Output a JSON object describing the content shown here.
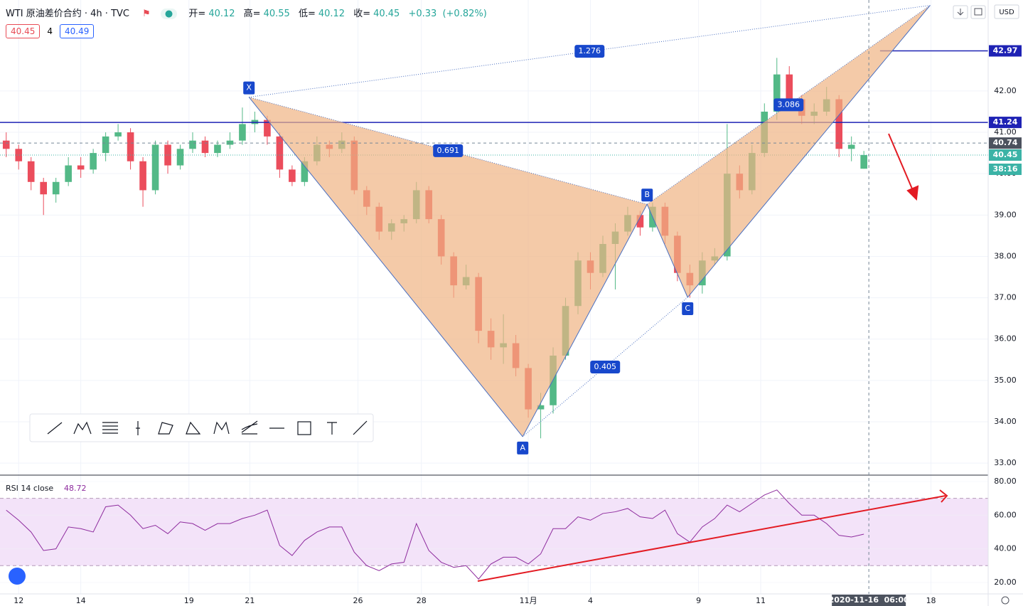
{
  "header": {
    "symbol": "WTI 原油差价合约 · 4h · TVC",
    "ohlc": [
      {
        "label": "开=",
        "value": 40.12
      },
      {
        "label": "高=",
        "value": 40.55
      },
      {
        "label": "低=",
        "value": 40.12
      },
      {
        "label": "收=",
        "value": 40.45
      }
    ],
    "change": {
      "value": 0.33,
      "label": "+0.33"
    },
    "change_pct": {
      "value": 0.82,
      "label": "(+0.82%)"
    },
    "bid": 40.45,
    "spread": 4,
    "ask": 40.49,
    "currency": "USD"
  },
  "chart_data": [
    {
      "type": "candlestick",
      "up_color": "#53b987",
      "down_color": "#eb4d5c",
      "grid": true,
      "xlim": [
        -0.5,
        79
      ],
      "ylim": [
        32.71,
        44.2
      ],
      "xticks": [
        {
          "value": 1,
          "label": "12"
        },
        {
          "value": 6,
          "label": "14"
        },
        {
          "value": 14.7,
          "label": "19"
        },
        {
          "value": 19.6,
          "label": "21"
        },
        {
          "value": 28.3,
          "label": "26"
        },
        {
          "value": 33.4,
          "label": "28"
        },
        {
          "value": 42,
          "label": "11月"
        },
        {
          "value": 47,
          "label": "4"
        },
        {
          "value": 55.7,
          "label": "9"
        },
        {
          "value": 60.7,
          "label": "11"
        },
        {
          "value": 74.4,
          "label": "18"
        }
      ],
      "yticks": [
        {
          "value": 33,
          "label": "33.00"
        },
        {
          "value": 34,
          "label": "34.00"
        },
        {
          "value": 35,
          "label": "35.00"
        },
        {
          "value": 36,
          "label": "36.00"
        },
        {
          "value": 37,
          "label": "37.00"
        },
        {
          "value": 38,
          "label": "38.00"
        },
        {
          "value": 39,
          "label": "39.00"
        },
        {
          "value": 40,
          "label": "40.00"
        },
        {
          "value": 41,
          "label": "41.00"
        },
        {
          "value": 42,
          "label": "42.00"
        }
      ],
      "ohlc": [
        [
          40.8,
          41.0,
          40.4,
          40.6
        ],
        [
          40.6,
          40.7,
          40.1,
          40.3
        ],
        [
          40.3,
          40.4,
          39.6,
          39.8
        ],
        [
          39.8,
          39.9,
          39.0,
          39.5
        ],
        [
          39.5,
          39.9,
          39.3,
          39.8
        ],
        [
          39.8,
          40.4,
          39.7,
          40.2
        ],
        [
          40.2,
          40.4,
          39.9,
          40.1
        ],
        [
          40.1,
          40.6,
          40.0,
          40.5
        ],
        [
          40.5,
          41.0,
          40.3,
          40.9
        ],
        [
          40.9,
          41.2,
          40.8,
          41.0
        ],
        [
          41.0,
          41.1,
          40.1,
          40.3
        ],
        [
          40.3,
          40.4,
          39.2,
          39.6
        ],
        [
          39.6,
          40.8,
          39.5,
          40.7
        ],
        [
          40.7,
          40.8,
          40.0,
          40.2
        ],
        [
          40.2,
          40.7,
          40.1,
          40.6
        ],
        [
          40.6,
          41.0,
          40.5,
          40.8
        ],
        [
          40.8,
          40.9,
          40.4,
          40.5
        ],
        [
          40.5,
          40.8,
          40.4,
          40.7
        ],
        [
          40.7,
          41.0,
          40.6,
          40.8
        ],
        [
          40.8,
          41.6,
          40.7,
          41.2
        ],
        [
          41.2,
          41.5,
          41.0,
          41.3
        ],
        [
          41.3,
          41.4,
          40.7,
          40.9
        ],
        [
          40.9,
          41.0,
          39.9,
          40.1
        ],
        [
          40.1,
          40.2,
          39.7,
          39.8
        ],
        [
          39.8,
          40.4,
          39.7,
          40.3
        ],
        [
          40.3,
          40.9,
          40.2,
          40.7
        ],
        [
          40.7,
          40.8,
          40.4,
          40.6
        ],
        [
          40.6,
          41.0,
          40.5,
          40.8
        ],
        [
          40.8,
          40.9,
          39.5,
          39.6
        ],
        [
          39.6,
          39.7,
          39.0,
          39.2
        ],
        [
          39.2,
          39.3,
          38.4,
          38.6
        ],
        [
          38.6,
          38.9,
          38.4,
          38.8
        ],
        [
          38.8,
          39.0,
          38.6,
          38.9
        ],
        [
          38.9,
          39.8,
          38.8,
          39.6
        ],
        [
          39.6,
          39.7,
          38.8,
          38.9
        ],
        [
          38.9,
          39.0,
          37.8,
          38.0
        ],
        [
          38.0,
          38.1,
          37.0,
          37.3
        ],
        [
          37.3,
          37.8,
          37.2,
          37.5
        ],
        [
          37.5,
          37.6,
          35.9,
          36.2
        ],
        [
          36.2,
          36.5,
          35.5,
          35.8
        ],
        [
          35.8,
          36.6,
          35.4,
          35.9
        ],
        [
          35.9,
          36.1,
          35.1,
          35.3
        ],
        [
          35.3,
          35.4,
          34.1,
          34.3
        ],
        [
          34.3,
          34.7,
          33.6,
          34.4
        ],
        [
          34.4,
          35.8,
          34.2,
          35.6
        ],
        [
          35.6,
          37.0,
          35.5,
          36.8
        ],
        [
          36.8,
          38.1,
          36.6,
          37.9
        ],
        [
          37.9,
          38.1,
          37.2,
          37.6
        ],
        [
          37.6,
          38.5,
          37.5,
          38.3
        ],
        [
          38.3,
          38.8,
          37.2,
          38.6
        ],
        [
          38.6,
          39.2,
          38.5,
          39.0
        ],
        [
          39.0,
          39.1,
          38.5,
          38.7
        ],
        [
          38.7,
          39.3,
          38.6,
          39.2
        ],
        [
          39.2,
          39.3,
          38.3,
          38.5
        ],
        [
          38.5,
          38.6,
          37.4,
          37.6
        ],
        [
          37.6,
          37.8,
          37.0,
          37.3
        ],
        [
          37.3,
          38.1,
          37.1,
          37.9
        ],
        [
          37.9,
          38.2,
          37.8,
          38.0
        ],
        [
          38.0,
          41.2,
          37.9,
          40.0
        ],
        [
          40.0,
          40.2,
          39.4,
          39.6
        ],
        [
          39.6,
          40.7,
          39.5,
          40.5
        ],
        [
          40.5,
          41.7,
          40.4,
          41.5
        ],
        [
          41.5,
          42.8,
          41.3,
          42.4
        ],
        [
          42.4,
          42.6,
          41.6,
          41.8
        ],
        [
          41.8,
          41.9,
          41.2,
          41.4
        ],
        [
          41.4,
          41.7,
          41.2,
          41.5
        ],
        [
          41.5,
          42.1,
          41.4,
          41.8
        ],
        [
          41.8,
          41.9,
          40.4,
          40.6
        ],
        [
          40.6,
          40.9,
          40.3,
          40.7
        ],
        [
          40.12,
          40.55,
          40.12,
          40.45
        ]
      ],
      "pattern": {
        "points": [
          {
            "name": "X",
            "x": 19.53,
            "y": 41.85
          },
          {
            "name": "A",
            "x": 41.55,
            "y": 33.64
          },
          {
            "name": "B",
            "x": 51.56,
            "y": 39.26
          },
          {
            "name": "C",
            "x": 54.82,
            "y": 37.01
          },
          {
            "name": null,
            "x": 74.33,
            "y": 44.07
          }
        ],
        "ratios": [
          1.276,
          0.691,
          0.405,
          3.086
        ],
        "fill": "#f0b483",
        "line_color": "#4a6fc0",
        "label_color": "#1848cc"
      },
      "levels": [
        {
          "value": 42.97,
          "start": 70.3,
          "color": "#1e22b4"
        },
        {
          "value": 41.24,
          "color": "#1e22b4"
        }
      ],
      "last_price": {
        "value": 40.45,
        "color": "#3bb3a6"
      },
      "countdown": "38:16",
      "crosshair": {
        "x": {
          "value": 69.4,
          "label": "2020-11-16  06:00"
        },
        "y": 40.74
      }
    },
    {
      "type": "line",
      "title": "RSI 14 close",
      "last_value": 48.72,
      "color": "#8e2c9e",
      "band": [
        30,
        70
      ],
      "ylim": [
        13.2,
        83.8
      ],
      "yticks": [
        {
          "value": 20,
          "label": "20.00"
        },
        {
          "value": 40,
          "label": "40.00"
        },
        {
          "value": 60,
          "label": "60.00"
        },
        {
          "value": 80,
          "label": "80.00"
        }
      ],
      "values": [
        63,
        57,
        50,
        39,
        40,
        53,
        52,
        50,
        65,
        66,
        60,
        52,
        54,
        49,
        56,
        55,
        51,
        55,
        55,
        58,
        60,
        63,
        42,
        36,
        45,
        50,
        53,
        53,
        38,
        30,
        27,
        31,
        32,
        55,
        39,
        32,
        29,
        30,
        22,
        31,
        35,
        35,
        31,
        37,
        52,
        52,
        59,
        57,
        61,
        62,
        64,
        59,
        58,
        63,
        49,
        44,
        53,
        58,
        66,
        62,
        67,
        72,
        75,
        67,
        60,
        60,
        55,
        48,
        47,
        48.72
      ]
    }
  ]
}
